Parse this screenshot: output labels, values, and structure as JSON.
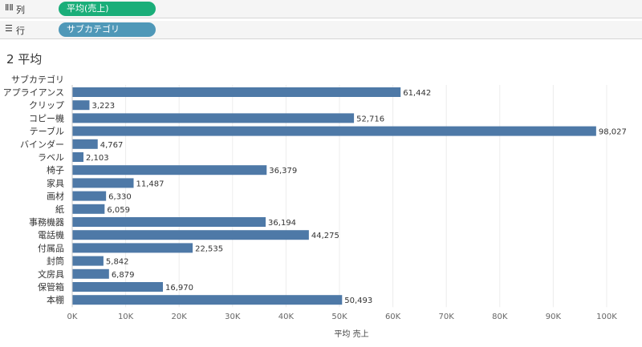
{
  "shelves": {
    "columns": {
      "icon": "columns-icon",
      "label": "列",
      "pill": "平均(売上)",
      "pill_color": "#1aae79"
    },
    "rows": {
      "icon": "rows-icon",
      "label": "行",
      "pill": "サブカテゴリ",
      "pill_color": "#4f98b8"
    }
  },
  "sheet": {
    "title": "2 平均"
  },
  "chart_data": {
    "type": "bar",
    "orientation": "horizontal",
    "category_header": "サブカテゴリ",
    "categories": [
      "アプライアンス",
      "クリップ",
      "コピー機",
      "テーブル",
      "バインダー",
      "ラベル",
      "椅子",
      "家具",
      "画材",
      "紙",
      "事務機器",
      "電話機",
      "付属品",
      "封筒",
      "文房具",
      "保管箱",
      "本棚"
    ],
    "values": [
      61442,
      3223,
      52716,
      98027,
      4767,
      2103,
      36379,
      11487,
      6330,
      6059,
      36194,
      44275,
      22535,
      5842,
      6879,
      16970,
      50493
    ],
    "value_labels": [
      "61,442",
      "3,223",
      "52,716",
      "98,027",
      "4,767",
      "2,103",
      "36,379",
      "11,487",
      "6,330",
      "6,059",
      "36,194",
      "44,275",
      "22,535",
      "5,842",
      "6,879",
      "16,970",
      "50,493"
    ],
    "xlabel": "平均 売上",
    "xlim": [
      0,
      100000
    ],
    "xticks": [
      0,
      10000,
      20000,
      30000,
      40000,
      50000,
      60000,
      70000,
      80000,
      90000,
      100000
    ],
    "xtick_labels": [
      "0K",
      "10K",
      "20K",
      "30K",
      "40K",
      "50K",
      "60K",
      "70K",
      "80K",
      "90K",
      "100K"
    ],
    "bar_color": "#4e79a7",
    "grid": true
  }
}
